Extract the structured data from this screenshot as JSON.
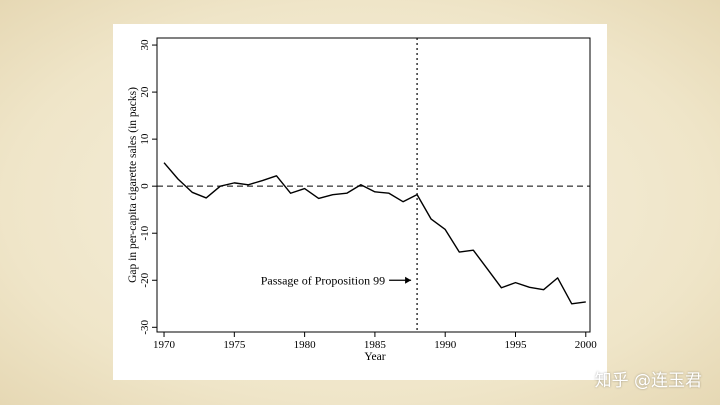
{
  "watermark": "知乎 @连玉君",
  "chart_data": {
    "type": "line",
    "title": "",
    "xlabel": "Year",
    "ylabel": "Gap in per-capita cigarette sales (in packs)",
    "xlim": [
      1969.5,
      2000.3
    ],
    "ylim": [
      -31,
      31.5
    ],
    "x_ticks": [
      1970,
      1975,
      1980,
      1985,
      1990,
      1995,
      2000
    ],
    "y_ticks": [
      30,
      20,
      10,
      0,
      -10,
      -20,
      -30
    ],
    "grid": false,
    "legend": "none",
    "reference_lines": {
      "horizontal_y": 0,
      "horizontal_style": "dashed",
      "vertical_x": 1988,
      "vertical_style": "dotted"
    },
    "annotation": {
      "text": "Passage of Proposition 99",
      "arrow_to_x": 1988,
      "y": -20
    },
    "series": [
      {
        "x": [
          1970,
          1971,
          1972,
          1973,
          1974,
          1975,
          1976,
          1977,
          1978,
          1979,
          1980,
          1981,
          1982,
          1983,
          1984,
          1985,
          1986,
          1987,
          1988,
          1989,
          1990,
          1991,
          1992,
          1993,
          1994,
          1995,
          1996,
          1997,
          1998,
          1999,
          2000
        ],
        "y": [
          5,
          1.5,
          -1.3,
          -2.5,
          0,
          0.7,
          0.3,
          1.2,
          2.2,
          -1.5,
          -0.5,
          -2.6,
          -1.8,
          -1.5,
          0.3,
          -1.2,
          -1.5,
          -3.3,
          -1.8,
          -7,
          -9.2,
          -14,
          -13.6,
          -17.6,
          -21.6,
          -20.5,
          -21.5,
          -22,
          -19.5,
          -25,
          -24.6
        ],
        "color": "#000000"
      }
    ]
  }
}
